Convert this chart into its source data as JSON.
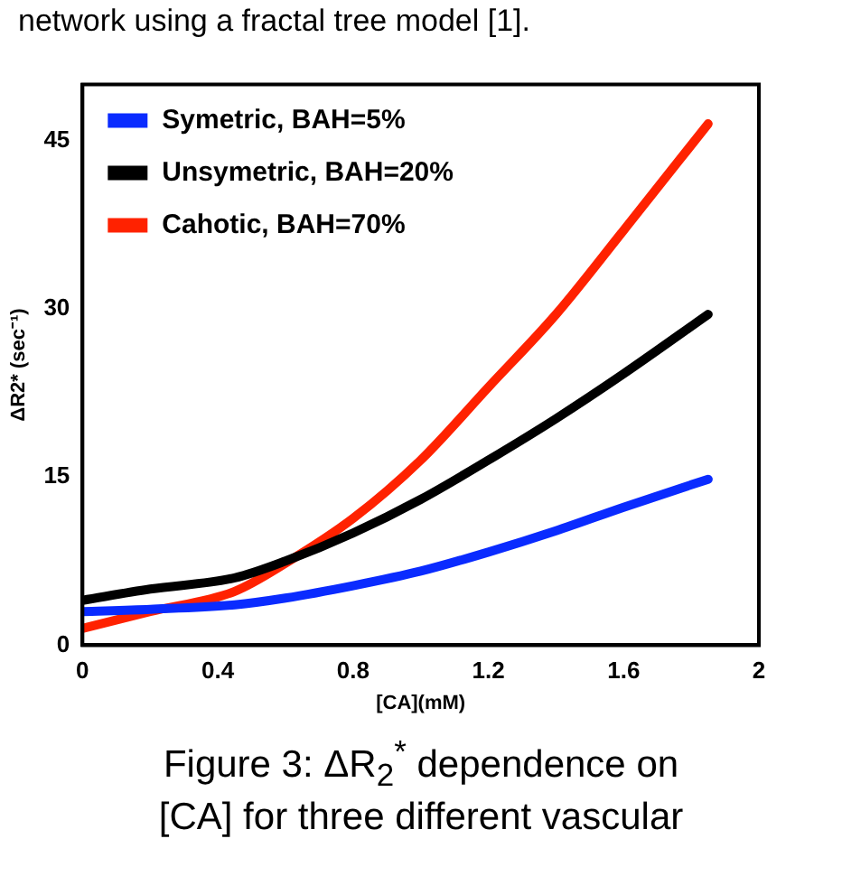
{
  "chart_data": {
    "type": "line",
    "xlabel": "[CA](mM)",
    "ylabel": "ΔR2* (sec⁻¹)",
    "xlim": [
      0,
      2
    ],
    "xticks": [
      0,
      0.4,
      0.8,
      1.2,
      1.6,
      2
    ],
    "ylim": [
      0,
      50
    ],
    "yticks": [
      0,
      15,
      30,
      45
    ],
    "grid": false,
    "legend": "top left",
    "line_style": "solid",
    "x": [
      0,
      0.2,
      0.45,
      0.6,
      0.8,
      1.0,
      1.2,
      1.4,
      1.6,
      1.85
    ],
    "series": [
      {
        "name": "Symetric, BAH=5%",
        "color": "#0a2bff",
        "values": [
          3,
          3.2,
          3.6,
          4.2,
          5.3,
          6.6,
          8.3,
          10.2,
          12.3,
          14.8
        ]
      },
      {
        "name": "Unsymetric, BAH=20%",
        "color": "#000000",
        "values": [
          4,
          5,
          6,
          7.5,
          10,
          13,
          16.5,
          20.2,
          24.2,
          29.5
        ]
      },
      {
        "name": "Cahotic, BAH=70%",
        "color": "#ff2200",
        "values": [
          1.5,
          3,
          4.8,
          7.3,
          11.3,
          16.5,
          23,
          29.5,
          37,
          46.5
        ]
      }
    ],
    "annotations": [
      "network using a fractal tree model [1].",
      "Figure 3: ΔR$_{2}$$^{*}$ dependence on [CA] for three different vascular"
    ]
  }
}
